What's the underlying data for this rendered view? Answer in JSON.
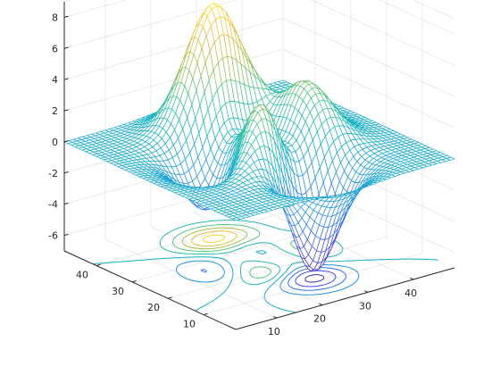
{
  "chart_data": {
    "type": "surface",
    "render": "mesh-with-contour (meshc)",
    "function": "peaks",
    "grid_size": 49,
    "x": {
      "range": [
        1,
        49
      ],
      "ticks": [
        "10",
        "20",
        "30",
        "40"
      ]
    },
    "y": {
      "range": [
        1,
        49
      ],
      "ticks": [
        "10",
        "20",
        "30",
        "40"
      ]
    },
    "z": {
      "range": [
        -7,
        9
      ],
      "ticks": [
        "-6",
        "-4",
        "-2",
        "0",
        "2",
        "4",
        "6",
        "8"
      ],
      "min": -6.55,
      "max": 8.1
    },
    "contour_plane_z": -7,
    "colormap": "parula",
    "colormap_stops": [
      "#3e26a8",
      "#4743f3",
      "#2c74f5",
      "#1c9ddd",
      "#13b6c0",
      "#3fc58d",
      "#a7bf46",
      "#f0bb3a",
      "#f9e225"
    ],
    "grid": true,
    "view": {
      "azimuth": -37.5,
      "elevation": 30
    }
  }
}
